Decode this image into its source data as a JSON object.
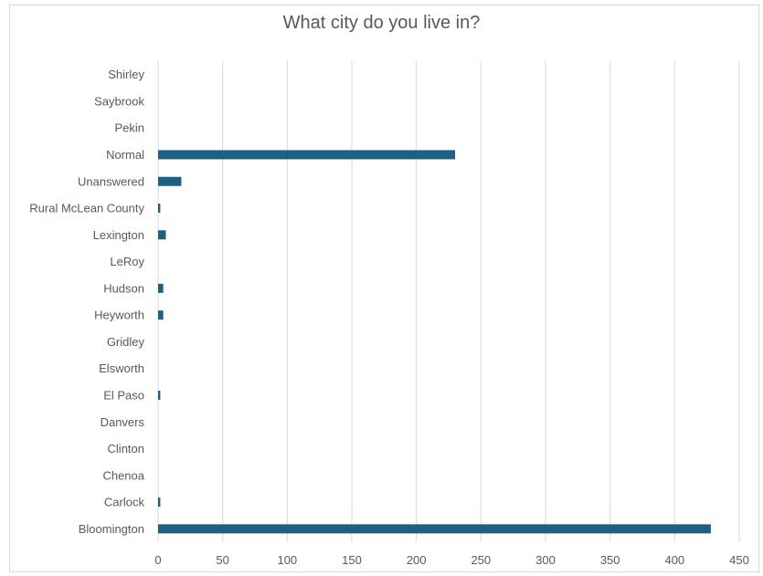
{
  "chart_data": {
    "type": "bar",
    "orientation": "horizontal",
    "title": "What city do you live in?",
    "xlabel": "",
    "ylabel": "",
    "xlim": [
      0,
      450
    ],
    "x_ticks": [
      0,
      50,
      100,
      150,
      200,
      250,
      300,
      350,
      400,
      450
    ],
    "grid": true,
    "legend": "none",
    "bar_color": "#1f5f82",
    "categories": [
      "Shirley",
      "Saybrook",
      "Pekin",
      "Normal",
      "Unanswered",
      "Rural McLean County",
      "Lexington",
      "LeRoy",
      "Hudson",
      "Heyworth",
      "Gridley",
      "Elsworth",
      "El Paso",
      "Danvers",
      "Clinton",
      "Chenoa",
      "Carlock",
      "Bloomington"
    ],
    "values": [
      0,
      0,
      0,
      230,
      18,
      1,
      6,
      0,
      4,
      4,
      0,
      0,
      1,
      0,
      0,
      0,
      1,
      428
    ]
  }
}
